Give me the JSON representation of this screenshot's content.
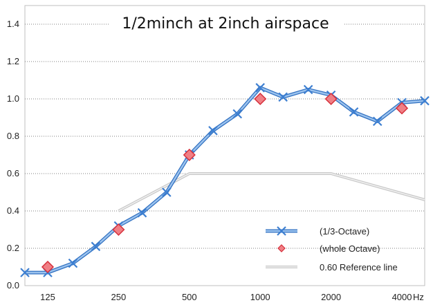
{
  "chart_data": {
    "type": "line",
    "title": "1/2minch at 2inch airspace",
    "x_unit_label": "Hz",
    "xlabel": "",
    "ylabel": "",
    "x_scale": "log",
    "xlim": [
      100,
      5000
    ],
    "ylim": [
      0,
      1.5
    ],
    "y_ticks": [
      0.0,
      0.2,
      0.4,
      0.6,
      0.8,
      1.0,
      1.2,
      1.4
    ],
    "y_tick_labels": [
      "0.0",
      "0.2",
      "0.4",
      "0.6",
      "0.8",
      "1.0",
      "1.2",
      "1.4"
    ],
    "x_ticks": [
      125,
      250,
      500,
      1000,
      2000,
      4000
    ],
    "x_tick_labels": [
      "125",
      "250",
      "500",
      "1000",
      "2000",
      "4000"
    ],
    "grid": "horizontal dotted",
    "legend_position": "bottom-right",
    "series": [
      {
        "name": "(1/3-Octave)",
        "style": "line-with-x-markers",
        "color": "#5b9bd5",
        "x": [
          100,
          125,
          160,
          200,
          250,
          315,
          400,
          500,
          630,
          800,
          1000,
          1250,
          1600,
          2000,
          2500,
          3150,
          4000,
          5000
        ],
        "y": [
          0.07,
          0.07,
          0.12,
          0.21,
          0.32,
          0.39,
          0.5,
          0.7,
          0.83,
          0.92,
          1.06,
          1.01,
          1.05,
          1.02,
          0.93,
          0.88,
          0.98,
          0.99
        ]
      },
      {
        "name": "(whole Octave)",
        "style": "diamond-markers",
        "color": "#e8424f",
        "x": [
          125,
          250,
          500,
          1000,
          2000,
          4000
        ],
        "y": [
          0.1,
          0.3,
          0.7,
          1.0,
          1.0,
          0.95
        ]
      },
      {
        "name": "0.60 Reference line",
        "style": "reference-line",
        "color": "#c8c8c8",
        "x": [
          250,
          500,
          2000,
          5000
        ],
        "y": [
          0.4,
          0.6,
          0.6,
          0.46
        ]
      }
    ]
  }
}
